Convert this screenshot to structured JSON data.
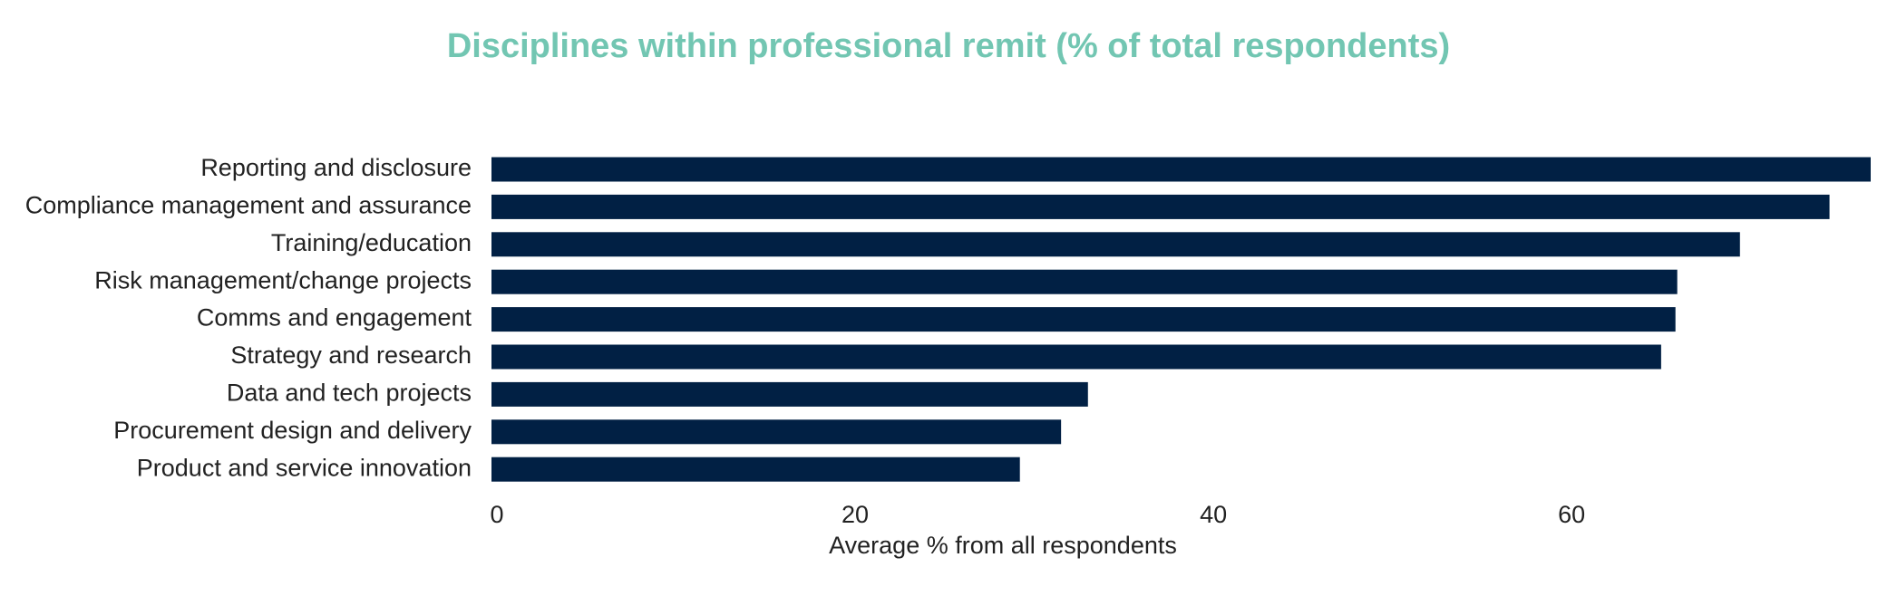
{
  "chart_data": {
    "type": "hbar",
    "title": "Disciplines within professional remit (% of total respondents)",
    "x_label": "Average % from all respondents",
    "categories": [
      "Reporting and disclosure",
      "Compliance management and assurance",
      "Training/education",
      "Risk management/change projects",
      "Comms and engagement",
      "Strategy and research",
      "Data and tech projects",
      "Procurement design and delivery",
      "Product and service innovation"
    ],
    "values": [
      77,
      74.7,
      69.7,
      66.2,
      66.1,
      65.3,
      33.3,
      31.8,
      29.5
    ],
    "color": "#012044",
    "xlim": [
      0,
      77
    ],
    "xticks": [
      0,
      20,
      40,
      60
    ]
  }
}
